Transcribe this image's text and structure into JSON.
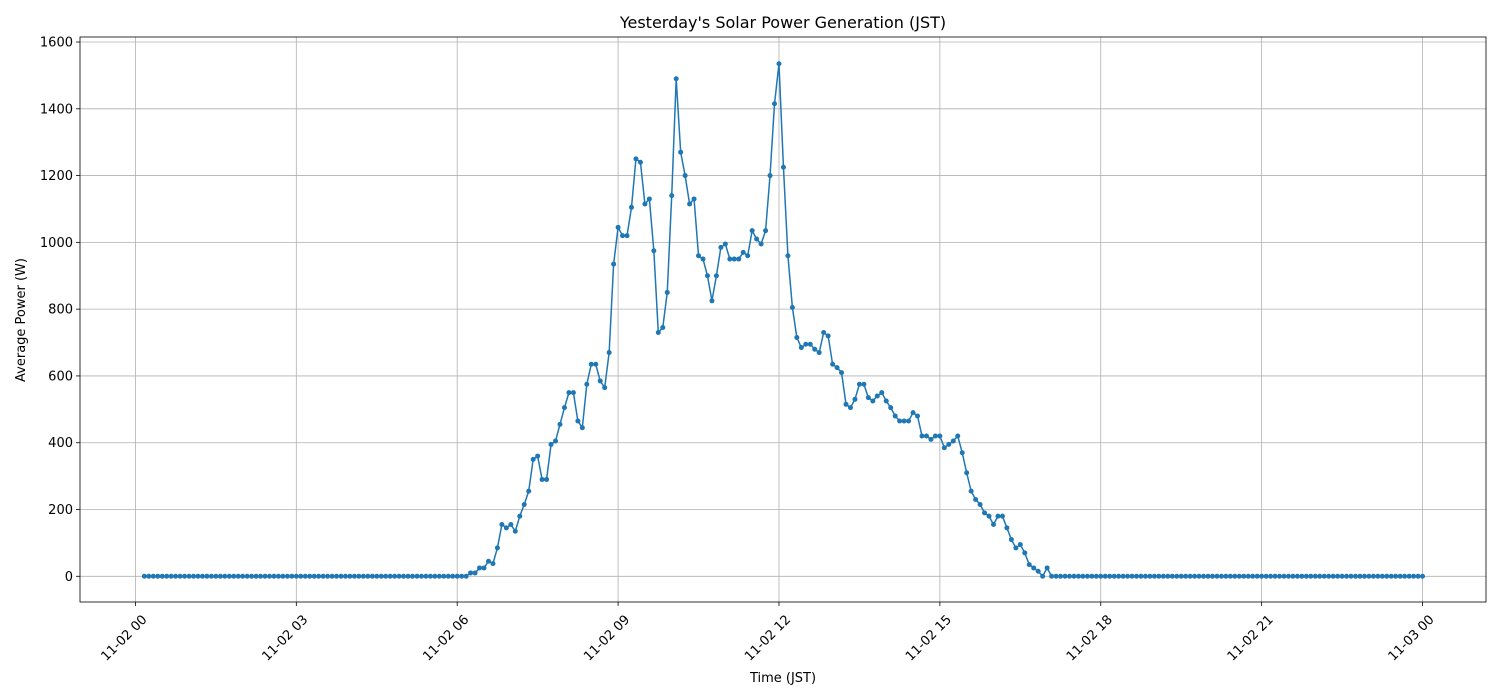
{
  "chart_data": {
    "type": "line",
    "title": "Yesterday's Solar Power Generation (JST)",
    "x_label": "Time (JST)",
    "y_label": "Average Power (W)",
    "color": "#1f77b4",
    "grid": true,
    "xlim": [
      -62,
      1511
    ],
    "ylim": [
      -77,
      1615
    ],
    "xticks": [
      {
        "value": 0,
        "label": "11-02 00"
      },
      {
        "value": 180,
        "label": "11-02 03"
      },
      {
        "value": 360,
        "label": "11-02 06"
      },
      {
        "value": 540,
        "label": "11-02 09"
      },
      {
        "value": 720,
        "label": "11-02 12"
      },
      {
        "value": 900,
        "label": "11-02 15"
      },
      {
        "value": 1080,
        "label": "11-02 18"
      },
      {
        "value": 1260,
        "label": "11-02 21"
      },
      {
        "value": 1440,
        "label": "11-03 00"
      }
    ],
    "yticks": [
      0,
      200,
      400,
      600,
      800,
      1000,
      1200,
      1400,
      1600
    ],
    "x": [
      10,
      15,
      20,
      25,
      30,
      35,
      40,
      45,
      50,
      55,
      60,
      65,
      70,
      75,
      80,
      85,
      90,
      95,
      100,
      105,
      110,
      115,
      120,
      125,
      130,
      135,
      140,
      145,
      150,
      155,
      160,
      165,
      170,
      175,
      180,
      185,
      190,
      195,
      200,
      205,
      210,
      215,
      220,
      225,
      230,
      235,
      240,
      245,
      250,
      255,
      260,
      265,
      270,
      275,
      280,
      285,
      290,
      295,
      300,
      305,
      310,
      315,
      320,
      325,
      330,
      335,
      340,
      345,
      350,
      355,
      360,
      365,
      370,
      375,
      380,
      385,
      390,
      395,
      400,
      405,
      410,
      415,
      420,
      425,
      430,
      435,
      440,
      445,
      450,
      455,
      460,
      465,
      470,
      475,
      480,
      485,
      490,
      495,
      500,
      505,
      510,
      515,
      520,
      525,
      530,
      535,
      540,
      545,
      550,
      555,
      560,
      565,
      570,
      575,
      580,
      585,
      590,
      595,
      600,
      605,
      610,
      615,
      620,
      625,
      630,
      635,
      640,
      645,
      650,
      655,
      660,
      665,
      670,
      675,
      680,
      685,
      690,
      695,
      700,
      705,
      710,
      715,
      720,
      725,
      730,
      735,
      740,
      745,
      750,
      755,
      760,
      765,
      770,
      775,
      780,
      785,
      790,
      795,
      800,
      805,
      810,
      815,
      820,
      825,
      830,
      835,
      840,
      845,
      850,
      855,
      860,
      865,
      870,
      875,
      880,
      885,
      890,
      895,
      900,
      905,
      910,
      915,
      920,
      925,
      930,
      935,
      940,
      945,
      950,
      955,
      960,
      965,
      970,
      975,
      980,
      985,
      990,
      995,
      1000,
      1005,
      1010,
      1015,
      1020,
      1025,
      1030,
      1035,
      1040,
      1045,
      1050,
      1055,
      1060,
      1065,
      1070,
      1075,
      1080,
      1085,
      1090,
      1095,
      1100,
      1105,
      1110,
      1115,
      1120,
      1125,
      1130,
      1135,
      1140,
      1145,
      1150,
      1155,
      1160,
      1165,
      1170,
      1175,
      1180,
      1185,
      1190,
      1195,
      1200,
      1205,
      1210,
      1215,
      1220,
      1225,
      1230,
      1235,
      1240,
      1245,
      1250,
      1255,
      1260,
      1265,
      1270,
      1275,
      1280,
      1285,
      1290,
      1295,
      1300,
      1305,
      1310,
      1315,
      1320,
      1325,
      1330,
      1335,
      1340,
      1345,
      1350,
      1355,
      1360,
      1365,
      1370,
      1375,
      1380,
      1385,
      1390,
      1395,
      1400,
      1405,
      1410,
      1415,
      1420,
      1425,
      1430,
      1435,
      1440
    ],
    "values": [
      0,
      0,
      0,
      0,
      0,
      0,
      0,
      0,
      0,
      0,
      0,
      0,
      0,
      0,
      0,
      0,
      0,
      0,
      0,
      0,
      0,
      0,
      0,
      0,
      0,
      0,
      0,
      0,
      0,
      0,
      0,
      0,
      0,
      0,
      0,
      0,
      0,
      0,
      0,
      0,
      0,
      0,
      0,
      0,
      0,
      0,
      0,
      0,
      0,
      0,
      0,
      0,
      0,
      0,
      0,
      0,
      0,
      0,
      0,
      0,
      0,
      0,
      0,
      0,
      0,
      0,
      0,
      0,
      0,
      0,
      0,
      0,
      0,
      10,
      10,
      25,
      25,
      45,
      38,
      85,
      155,
      145,
      155,
      135,
      180,
      215,
      255,
      350,
      360,
      290,
      290,
      395,
      405,
      455,
      505,
      550,
      550,
      465,
      445,
      575,
      635,
      635,
      585,
      565,
      670,
      935,
      1045,
      1020,
      1020,
      1105,
      1250,
      1240,
      1115,
      1130,
      975,
      730,
      745,
      850,
      1140,
      1490,
      1270,
      1200,
      1115,
      1130,
      960,
      950,
      900,
      825,
      900,
      985,
      995,
      950,
      950,
      950,
      970,
      960,
      1035,
      1010,
      995,
      1035,
      1200,
      1415,
      1535,
      1225,
      960,
      805,
      715,
      685,
      695,
      695,
      680,
      670,
      730,
      720,
      635,
      625,
      610,
      515,
      505,
      530,
      575,
      575,
      535,
      525,
      540,
      550,
      525,
      505,
      480,
      465,
      465,
      465,
      490,
      480,
      420,
      420,
      410,
      420,
      420,
      385,
      395,
      405,
      420,
      370,
      310,
      255,
      230,
      215,
      190,
      180,
      155,
      180,
      180,
      145,
      110,
      85,
      95,
      70,
      35,
      25,
      15,
      0,
      25,
      0,
      0,
      0,
      0,
      0,
      0,
      0,
      0,
      0,
      0,
      0,
      0,
      0,
      0,
      0,
      0,
      0,
      0,
      0,
      0,
      0,
      0,
      0,
      0,
      0,
      0,
      0,
      0,
      0,
      0,
      0,
      0,
      0,
      0,
      0,
      0,
      0,
      0,
      0,
      0,
      0,
      0,
      0,
      0,
      0,
      0,
      0,
      0,
      0,
      0,
      0,
      0,
      0,
      0,
      0,
      0,
      0,
      0,
      0,
      0,
      0,
      0,
      0,
      0,
      0,
      0,
      0,
      0,
      0,
      0,
      0,
      0,
      0,
      0,
      0,
      0,
      0,
      0,
      0,
      0,
      0,
      0,
      0,
      0
    ]
  }
}
